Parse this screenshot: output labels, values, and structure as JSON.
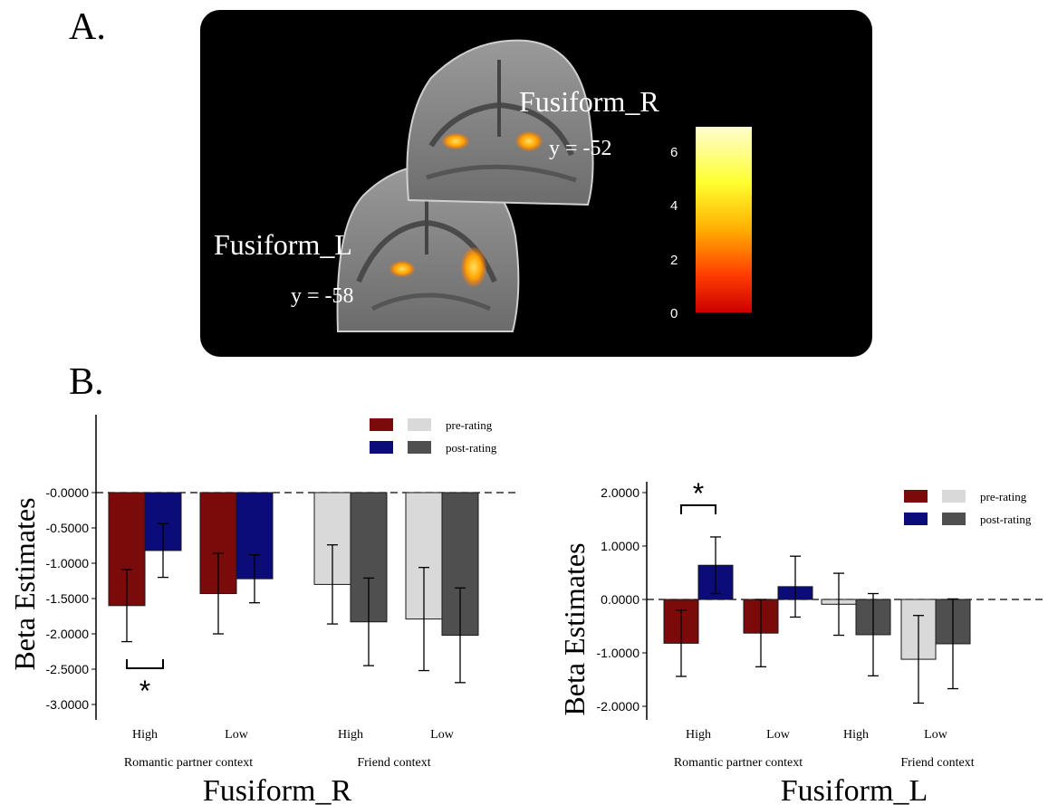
{
  "panel_a": {
    "letter": "A.",
    "labels": {
      "fusiform_r": "Fusiform_R",
      "y_r": "y = -52",
      "fusiform_l": "Fusiform_L",
      "y_l": "y = -58"
    },
    "colorbar": {
      "ticks": [
        "6",
        "4",
        "2",
        "0"
      ],
      "colors": [
        "#fffcd0",
        "#ffff30",
        "#ffb000",
        "#ff3c00",
        "#cc0000"
      ]
    }
  },
  "panel_b": {
    "letter": "B."
  },
  "legend": {
    "pre_label": "pre-rating",
    "post_label": "post-rating",
    "colors": {
      "pre_partner": "#7b0a0a",
      "post_partner": "#0b0b7a",
      "pre_friend": "#d9d9d9",
      "post_friend": "#4f4f4f"
    }
  },
  "chart_data": [
    {
      "type": "bar",
      "title": "Fusiform_R",
      "xlabel": "Fusiform_R",
      "ylabel": "Beta Estimates",
      "ylim": [
        -3.0,
        0.0
      ],
      "yticks": [
        "-0.0000",
        "-0.5000",
        "-1.0000",
        "-1.5000",
        "-2.0000",
        "-2.5000",
        "-3.0000"
      ],
      "categories": [
        "High",
        "Low",
        "High",
        "Low"
      ],
      "groups": [
        "Romantic partner context",
        "Friend context"
      ],
      "series": [
        {
          "name": "pre-rating",
          "values": [
            -1.6,
            -1.43,
            -1.3,
            -1.79
          ],
          "errors": [
            0.51,
            0.57,
            0.56,
            0.73
          ]
        },
        {
          "name": "post-rating",
          "values": [
            -0.82,
            -1.22,
            -1.83,
            -2.02
          ],
          "errors": [
            0.38,
            0.34,
            0.62,
            0.67
          ]
        }
      ],
      "significance": {
        "marker": "*",
        "between": "High pre vs post (Romantic partner context)",
        "placement": "below"
      }
    },
    {
      "type": "bar",
      "title": "Fusiform_L",
      "xlabel": "Fusiform_L",
      "ylabel": "Beta Estimates",
      "ylim": [
        -2.0,
        2.0
      ],
      "yticks": [
        "2.0000",
        "1.0000",
        "0.0000",
        "-1.0000",
        "-2.0000"
      ],
      "categories": [
        "High",
        "Low",
        "High",
        "Low"
      ],
      "groups": [
        "Romantic partner context",
        "Friend context"
      ],
      "series": [
        {
          "name": "pre-rating",
          "values": [
            -0.82,
            -0.63,
            -0.09,
            -1.12
          ],
          "errors": [
            0.62,
            0.63,
            0.58,
            0.82
          ]
        },
        {
          "name": "post-rating",
          "values": [
            0.64,
            0.24,
            -0.66,
            -0.83
          ],
          "errors": [
            0.53,
            0.57,
            0.77,
            0.84
          ]
        }
      ],
      "significance": {
        "marker": "*",
        "between": "High pre vs post (Romantic partner context)",
        "placement": "above"
      }
    }
  ]
}
